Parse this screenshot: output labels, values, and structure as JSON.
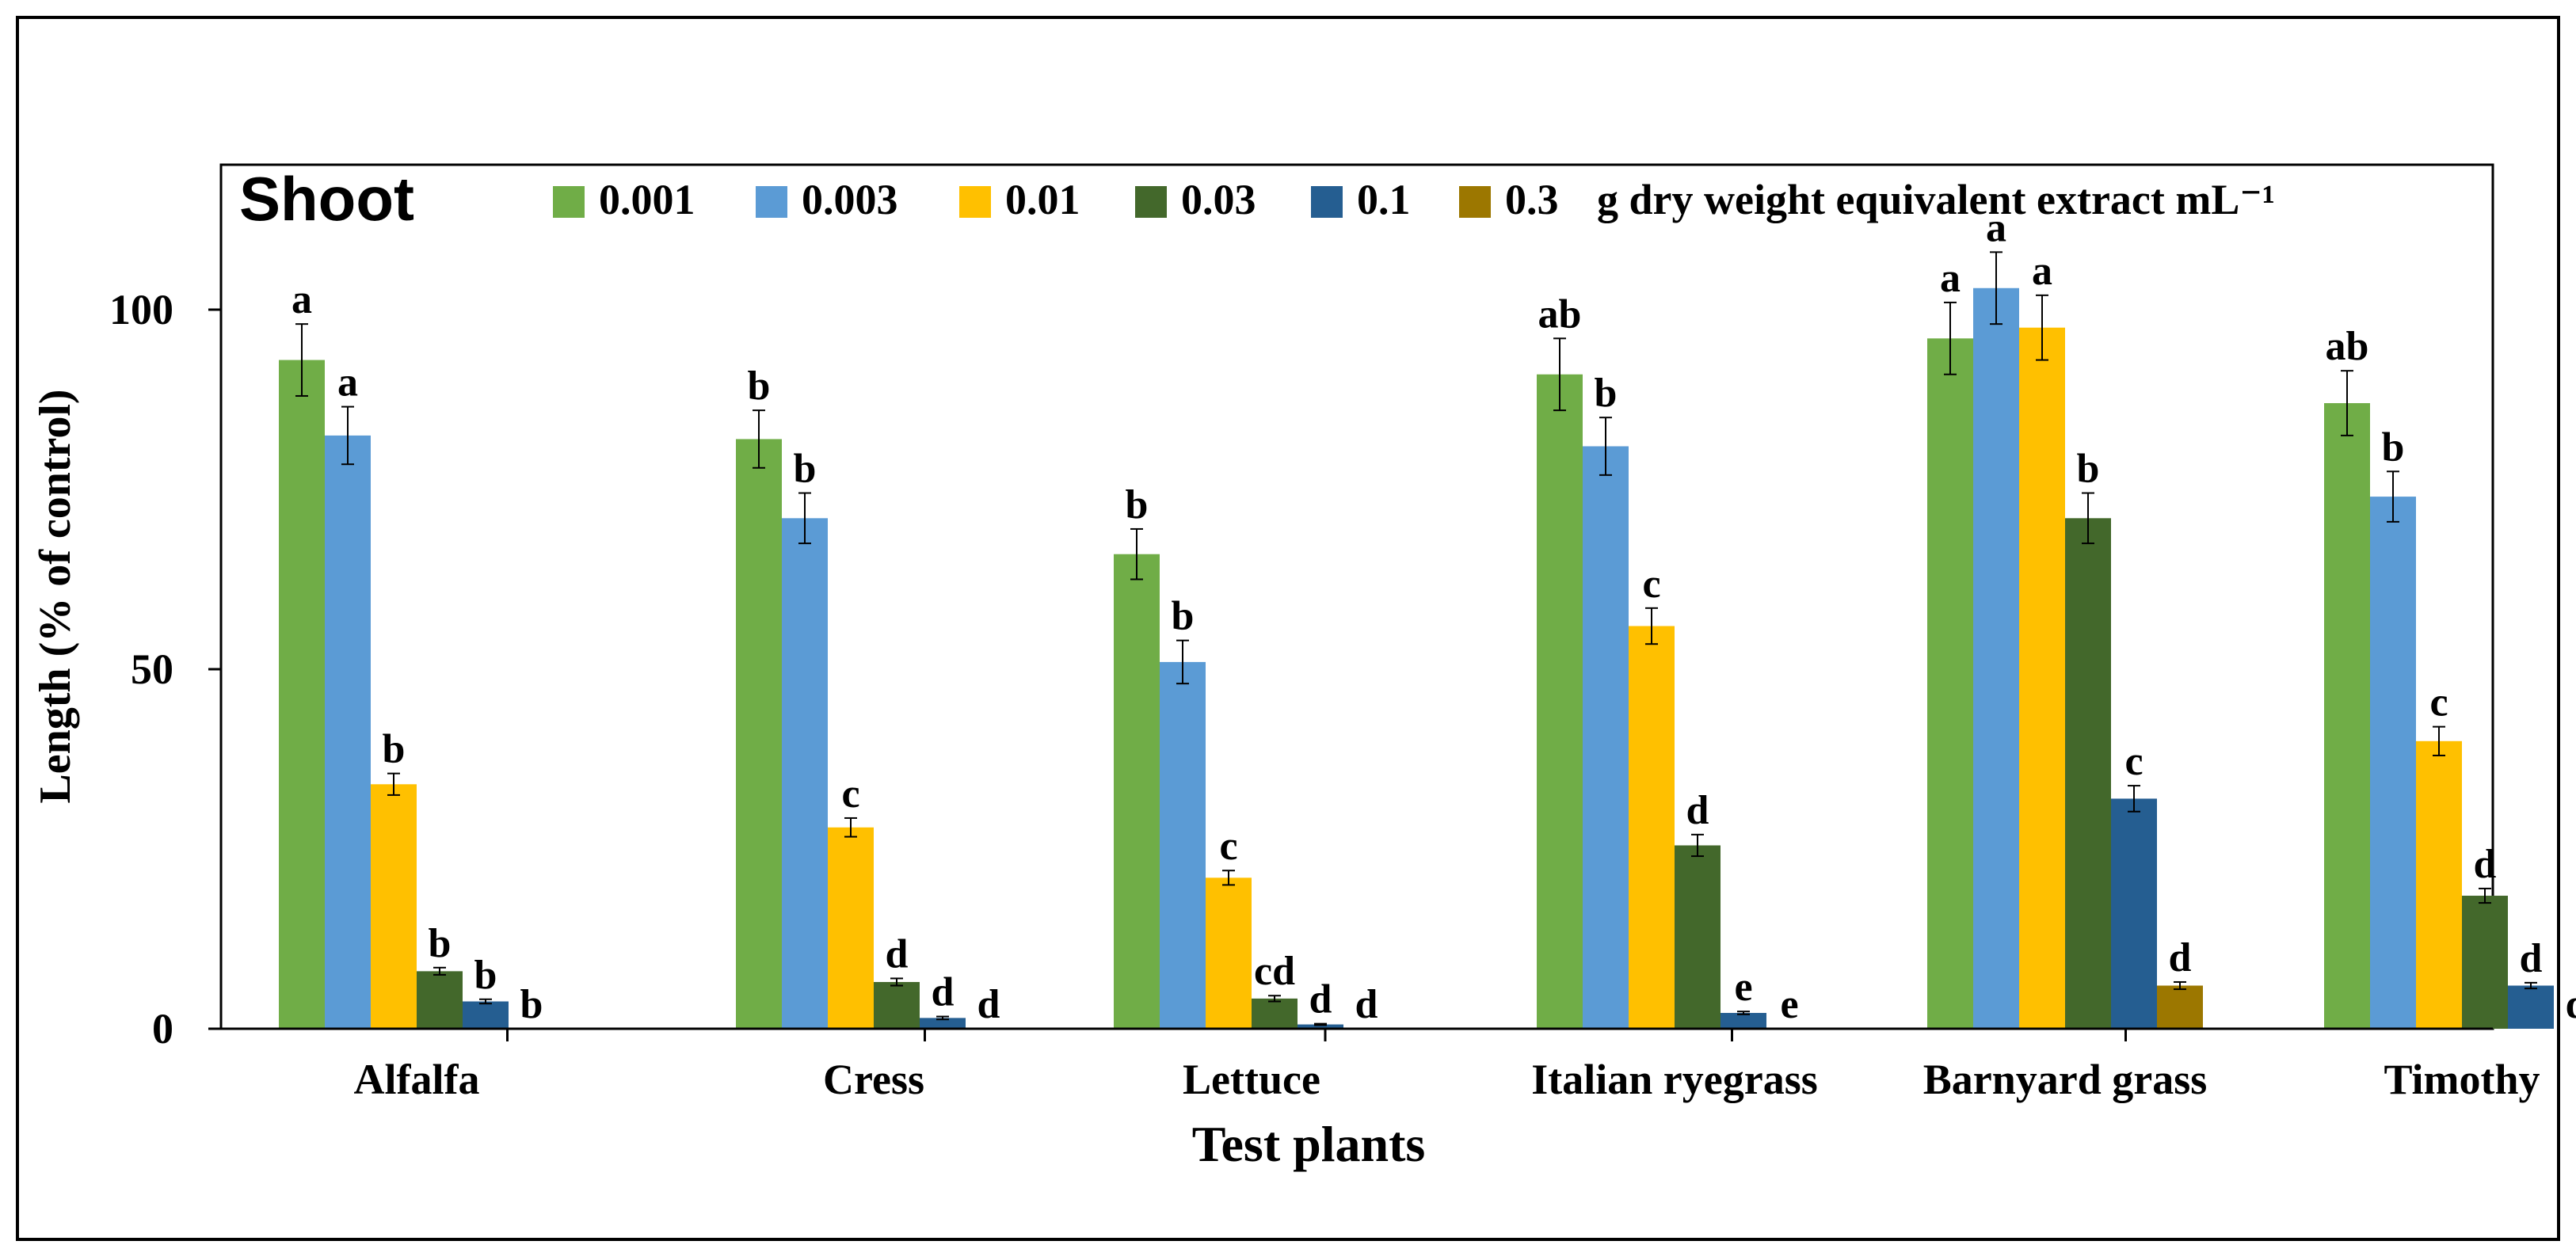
{
  "chart_data": {
    "type": "bar",
    "title": "Shoot",
    "xlabel": "Test plants",
    "ylabel": "Length (% of control)",
    "ylim": [
      0,
      120
    ],
    "yticks": [
      0,
      50,
      100
    ],
    "grid": false,
    "legend_position": "top",
    "legend_suffix": "g dry weight equivalent extract mL⁻¹",
    "categories": [
      "Alfalfa",
      "Cress",
      "Lettuce",
      "Italian ryegrass",
      "Barnyard grass",
      "Timothy"
    ],
    "series": [
      {
        "name": "0.001",
        "color": "#70ad47",
        "values": [
          93,
          82,
          66,
          91,
          96,
          87
        ],
        "errors": [
          5,
          4,
          3.5,
          5,
          5,
          4.5
        ],
        "letters": [
          "a",
          "b",
          "b",
          "ab",
          "a",
          "ab"
        ]
      },
      {
        "name": "0.003",
        "color": "#5b9bd5",
        "values": [
          82.5,
          71,
          51,
          81,
          103,
          74
        ],
        "errors": [
          4,
          3.5,
          3,
          4,
          5,
          3.5
        ],
        "letters": [
          "a",
          "b",
          "b",
          "b",
          "a",
          "b"
        ]
      },
      {
        "name": "0.01",
        "color": "#ffc000",
        "values": [
          34,
          28,
          21,
          56,
          97.5,
          40
        ],
        "errors": [
          1.5,
          1.3,
          1,
          2.5,
          4.5,
          2
        ],
        "letters": [
          "b",
          "c",
          "c",
          "c",
          "a",
          "c"
        ]
      },
      {
        "name": "0.03",
        "color": "#43682b",
        "values": [
          8,
          6.5,
          4.2,
          25.5,
          71,
          18.5
        ],
        "errors": [
          0.5,
          0.5,
          0.4,
          1.5,
          3.5,
          1
        ],
        "letters": [
          "b",
          "d",
          "cd",
          "d",
          "b",
          "d"
        ]
      },
      {
        "name": "0.1",
        "color": "#255e91",
        "values": [
          3.8,
          1.5,
          0.6,
          2.2,
          32,
          6
        ],
        "errors": [
          0.3,
          0.2,
          0.1,
          0.2,
          1.8,
          0.4
        ],
        "letters": [
          "b",
          "d",
          "d",
          "e",
          "c",
          "d"
        ]
      },
      {
        "name": "0.3",
        "color": "#9c7700",
        "values": [
          0,
          0,
          0,
          0,
          6,
          0
        ],
        "errors": [
          0,
          0,
          0,
          0,
          0.5,
          0
        ],
        "letters": [
          "b",
          "d",
          "d",
          "e",
          "d",
          "d"
        ]
      }
    ]
  }
}
